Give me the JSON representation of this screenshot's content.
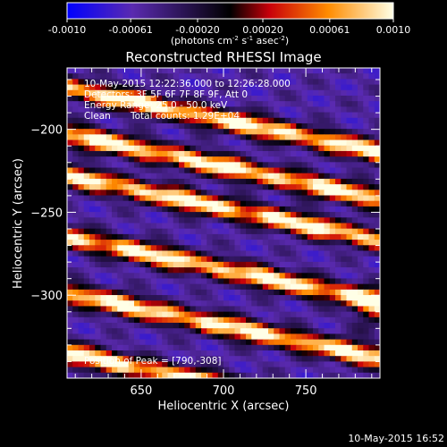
{
  "colorbar": {
    "ticks": [
      "-0.0010",
      "-0.00061",
      "-0.00020",
      "0.00020",
      "0.00061",
      "0.0010"
    ],
    "tick_values": [
      -0.001,
      -0.00061,
      -0.0002,
      0.0002,
      0.00061,
      0.001
    ],
    "range": [
      -0.001,
      0.001
    ],
    "unit_label_pre": "(photons cm",
    "unit_exp1": "-2",
    "unit_mid1": " s",
    "unit_exp2": "-1",
    "unit_mid2": " asec",
    "unit_exp3": "-2",
    "unit_close": ")"
  },
  "chart_data": {
    "type": "heatmap",
    "title": "Reconstructed RHESSI Image",
    "xlabel": "Heliocentric X (arcsec)",
    "ylabel": "Heliocentric Y (arcsec)",
    "xlim": [
      605,
      795
    ],
    "ylim": [
      -350,
      -163
    ],
    "xticks": [
      650,
      700,
      750
    ],
    "yticks": [
      -200,
      -250,
      -300
    ],
    "ytick_labels": [
      "−200",
      "−250",
      "−300"
    ],
    "colormap": "rhessi-bluered",
    "colormap_stops": [
      "#0000ff",
      "#5a2ab0",
      "#000000",
      "#c8000a",
      "#ff8c00",
      "#ffffe6"
    ],
    "value_range": [
      -0.001,
      0.001
    ],
    "stripe_ridges_x_at_605": [
      -175,
      -203,
      -228,
      -265,
      -299,
      -335
    ],
    "stripe_slope": -0.205,
    "peak": [
      790,
      -308
    ],
    "annotations": {
      "time_range": "10-May-2015 12:22:36.000 to 12:26:28.000",
      "detectors": "Detectors: 3F 5F 6F 7F 8F 9F, Att 0",
      "energy_range": "Energy Range: 25.0 - 50.0 keV",
      "method": "Clean",
      "total_counts": "Total counts: 1.29E+04",
      "peak_position": "Position of Peak = [790,-308]"
    }
  },
  "footer": {
    "timestamp": "10-May-2015 16:52"
  }
}
